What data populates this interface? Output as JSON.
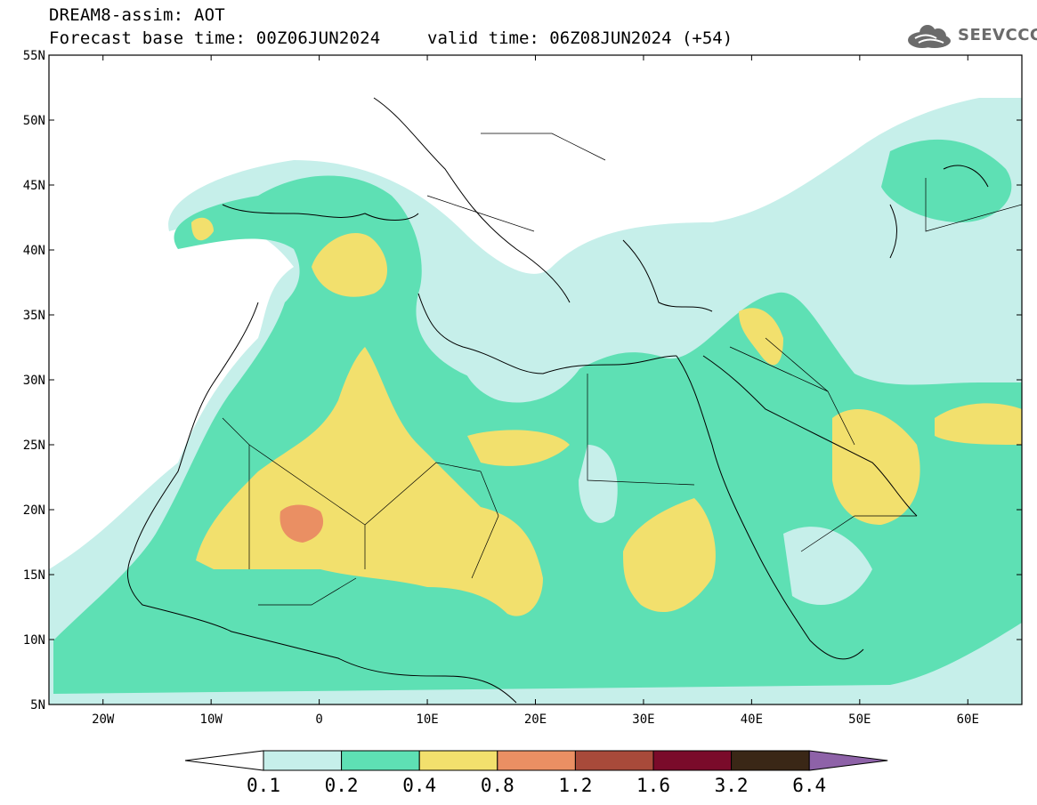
{
  "header": {
    "title": "DREAM8-assim: AOT",
    "base_time": "Forecast base time: 00Z06JUN2024",
    "valid_time": "valid time: 06Z08JUN2024 (+54)"
  },
  "logo": {
    "text": "SEEVCCC",
    "icon": "cloud-icon"
  },
  "map": {
    "lon_range": [
      -25,
      65
    ],
    "lat_range": [
      5,
      55
    ],
    "lat_ticks": [
      "55N",
      "50N",
      "45N",
      "40N",
      "35N",
      "30N",
      "25N",
      "20N",
      "15N",
      "10N",
      "5N"
    ],
    "lon_ticks": [
      "20W",
      "10W",
      "0",
      "10E",
      "20E",
      "30E",
      "40E",
      "50E",
      "60E"
    ]
  },
  "legend": {
    "bins": [
      {
        "color": "#c6efea"
      },
      {
        "color": "#5ee0b4"
      },
      {
        "color": "#f2e06d"
      },
      {
        "color": "#ea8f63"
      },
      {
        "color": "#a84a3a"
      },
      {
        "color": "#7a0b2a"
      },
      {
        "color": "#3a2716"
      }
    ],
    "under_color": "#ffffff",
    "over_color": "#8e62a8",
    "labels": [
      "0.1",
      "0.2",
      "0.4",
      "0.8",
      "1.2",
      "1.6",
      "3.2",
      "6.4"
    ]
  },
  "colors": {
    "c1": "#c6efea",
    "c2": "#5ee0b4",
    "c3": "#f2e06d",
    "c4": "#ea8f63"
  }
}
